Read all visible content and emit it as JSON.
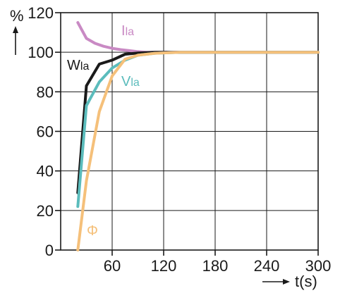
{
  "chart_data": {
    "type": "line",
    "title": "",
    "ylabel": "%",
    "xlabel": "t(s)",
    "xlim": [
      0,
      300
    ],
    "ylim": [
      0,
      120
    ],
    "xticks": [
      60,
      120,
      180,
      240,
      300
    ],
    "yticks": [
      0,
      20,
      40,
      60,
      80,
      100,
      120
    ],
    "grid": true,
    "series": [
      {
        "name": "Ila",
        "name_main": "I",
        "name_sub": "la",
        "color": "#c98ac4",
        "x": [
          20,
          30,
          40,
          50,
          60,
          70,
          80,
          90,
          100,
          120,
          300
        ],
        "y": [
          115,
          107,
          104.5,
          103,
          102,
          101.3,
          100.8,
          100.3,
          100,
          100,
          100
        ]
      },
      {
        "name": "Wla",
        "name_main": "W",
        "name_sub": "la",
        "color": "#1a1a1a",
        "x": [
          20,
          30,
          45,
          60,
          75,
          90,
          110,
          130,
          300
        ],
        "y": [
          29,
          83,
          94,
          96,
          99,
          99.6,
          100,
          100,
          100
        ]
      },
      {
        "name": "Vla",
        "name_main": "V",
        "name_sub": "la",
        "color": "#5bbcbc",
        "x": [
          20,
          30,
          45,
          60,
          75,
          90,
          110,
          140,
          300
        ],
        "y": [
          22,
          73,
          85,
          92,
          96,
          98.5,
          99.5,
          100,
          100
        ]
      },
      {
        "name": "Φ",
        "name_main": "Φ",
        "name_sub": "",
        "color": "#f5c07a",
        "x": [
          20,
          30,
          45,
          60,
          75,
          90,
          110,
          140,
          300
        ],
        "y": [
          0,
          35,
          70,
          88,
          96.5,
          98.5,
          99.5,
          100,
          100
        ]
      }
    ]
  }
}
